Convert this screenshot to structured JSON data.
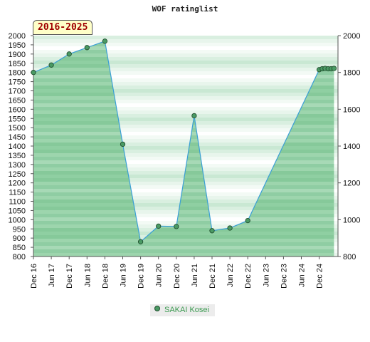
{
  "title": "WOF ratinglist",
  "period_label": "2016-2025",
  "chart_data": {
    "type": "area",
    "title": "WOF ratinglist",
    "xlabel": "",
    "ylabel": "",
    "ylim": [
      800,
      2000
    ],
    "left_ticks": [
      "2000",
      "1950",
      "1900",
      "1850",
      "1800",
      "1750",
      "1700",
      "1650",
      "1600",
      "1550",
      "1500",
      "1450",
      "1400",
      "1350",
      "1300",
      "1250",
      "1200",
      "1150",
      "1100",
      "1050",
      "1000",
      "950",
      "900",
      "850",
      "800"
    ],
    "right_ticks": [
      "2000",
      "1800",
      "1600",
      "1400",
      "1200",
      "1000",
      "800"
    ],
    "x_categories": [
      "Dec 16",
      "Jun 17",
      "Dec 17",
      "Jun 18",
      "Dec 18",
      "Jun 19",
      "Dec 19",
      "Jun 20",
      "Dec 20",
      "Jun 21",
      "Dec 21",
      "Jun 22",
      "Dec 22",
      "Jun 23",
      "Dec 23",
      "Jun 24",
      "Dec 24"
    ],
    "grid": true,
    "legend_position": "bottom-center",
    "fill_color": "#5fb97a",
    "line_color": "#3a9fd6",
    "point_color": "#4a9a64",
    "series": [
      {
        "name": "SAKAI Kosei",
        "points": [
          {
            "x": 0,
            "y": 1800
          },
          {
            "x": 1,
            "y": 1840
          },
          {
            "x": 2,
            "y": 1900
          },
          {
            "x": 3,
            "y": 1935
          },
          {
            "x": 4,
            "y": 1970
          },
          {
            "x": 5,
            "y": 1410
          },
          {
            "x": 6,
            "y": 880
          },
          {
            "x": 7,
            "y": 965
          },
          {
            "x": 8,
            "y": 963
          },
          {
            "x": 9,
            "y": 1565
          },
          {
            "x": 10,
            "y": 940
          },
          {
            "x": 11,
            "y": 955
          },
          {
            "x": 12,
            "y": 995
          },
          {
            "x": 16,
            "y": 1815
          },
          {
            "x": 16.17,
            "y": 1820
          },
          {
            "x": 16.33,
            "y": 1822
          },
          {
            "x": 16.5,
            "y": 1820
          },
          {
            "x": 16.67,
            "y": 1820
          },
          {
            "x": 16.83,
            "y": 1822
          }
        ]
      }
    ]
  }
}
